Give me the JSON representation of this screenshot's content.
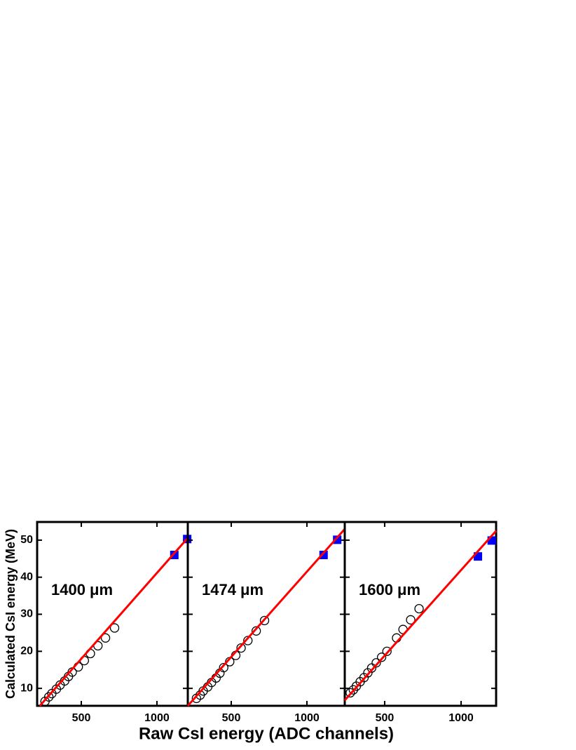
{
  "chart_data": [
    {
      "type": "scatter",
      "annotation": "1400 μm",
      "y_label": "Calculated CsI energy (MeV)",
      "xlim": [
        208,
        1204
      ],
      "xticks": [
        500,
        1000
      ],
      "ylim": [
        5.3,
        54.9
      ],
      "yticks": [
        10,
        20,
        30,
        40,
        50
      ],
      "series": [
        {
          "marker": "open-circle",
          "color": "#000000",
          "x": [
            260,
            285,
            305,
            335,
            360,
            390,
            415,
            440,
            480,
            520,
            560,
            610,
            660,
            720
          ],
          "values": [
            6.5,
            7.7,
            8.6,
            9.8,
            10.9,
            12.0,
            13.2,
            14.4,
            15.8,
            17.5,
            19.4,
            21.5,
            23.6,
            26.3
          ]
        },
        {
          "marker": "square",
          "color": "#0000ff",
          "x": [
            1115,
            1200
          ],
          "values": [
            46.0,
            50.3
          ]
        },
        {
          "marker": "line",
          "color": "#ff0000",
          "x": [
            226,
            1204
          ],
          "values": [
            5.3,
            50.6
          ]
        }
      ]
    },
    {
      "type": "scatter",
      "annotation": "1474 μm",
      "x_label": "Raw CsI energy (ADC channels)",
      "xlim": [
        213,
        1250
      ],
      "xticks": [
        500,
        1000
      ],
      "ylim": [
        5.3,
        54.9
      ],
      "series": [
        {
          "marker": "open-circle",
          "color": "#000000",
          "x": [
            270,
            295,
            315,
            345,
            370,
            400,
            425,
            450,
            490,
            530,
            565,
            610,
            665,
            720
          ],
          "values": [
            7.3,
            8.2,
            9.3,
            10.4,
            11.6,
            12.8,
            14.1,
            15.6,
            17.2,
            18.9,
            20.9,
            22.9,
            25.5,
            28.3
          ]
        },
        {
          "marker": "square",
          "color": "#0000ff",
          "x": [
            1110,
            1200
          ],
          "values": [
            46.0,
            50.1
          ]
        },
        {
          "marker": "line",
          "color": "#ff0000",
          "x": [
            213,
            1250
          ],
          "values": [
            5.3,
            53.0
          ]
        }
      ]
    },
    {
      "type": "scatter",
      "annotation": "1600 μm",
      "xlim": [
        239,
        1229
      ],
      "xticks": [
        500,
        1000
      ],
      "ylim": [
        5.3,
        54.9
      ],
      "series": [
        {
          "marker": "open-circle",
          "color": "#000000",
          "x": [
            275,
            295,
            315,
            340,
            365,
            390,
            415,
            445,
            480,
            515,
            578,
            620,
            670,
            725
          ],
          "values": [
            8.8,
            9.6,
            10.6,
            11.8,
            12.9,
            14.2,
            15.5,
            16.9,
            18.4,
            20.0,
            23.6,
            25.9,
            28.5,
            31.5
          ]
        },
        {
          "marker": "square",
          "color": "#0000ff",
          "x": [
            1110,
            1200
          ],
          "values": [
            45.6,
            49.9
          ]
        },
        {
          "marker": "line",
          "color": "#ff0000",
          "x": [
            239,
            1229
          ],
          "values": [
            6.8,
            52.5
          ]
        }
      ]
    }
  ]
}
